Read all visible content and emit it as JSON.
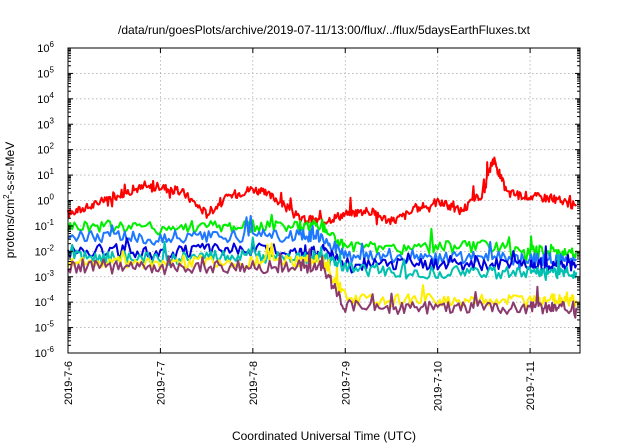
{
  "chart_data": {
    "type": "line",
    "title": "/data/run/goesPlots/archive/2019-07-11/13:00/flux/../flux/5daysEarthFluxes.txt",
    "xlabel": "Coordinated Universal Time (UTC)",
    "ylabel": {
      "base": "protons/cm",
      "sup": "2",
      "rest": "-s-sr-MeV"
    },
    "yscale": "log",
    "ylim_exp": [
      -6,
      6
    ],
    "y_ticks": [
      {
        "base": "10",
        "exp": "-6"
      },
      {
        "base": "10",
        "exp": "-5"
      },
      {
        "base": "10",
        "exp": "-4"
      },
      {
        "base": "10",
        "exp": "-3"
      },
      {
        "base": "10",
        "exp": "-2"
      },
      {
        "base": "10",
        "exp": "-1"
      },
      {
        "base": "10",
        "exp": "0"
      },
      {
        "base": "10",
        "exp": "1"
      },
      {
        "base": "10",
        "exp": "2"
      },
      {
        "base": "10",
        "exp": "3"
      },
      {
        "base": "10",
        "exp": "4"
      },
      {
        "base": "10",
        "exp": "5"
      },
      {
        "base": "10",
        "exp": "6"
      }
    ],
    "x_ticks": [
      "2019-7-6",
      "2019-7-7",
      "2019-7-8",
      "2019-7-9",
      "2019-7-10",
      "2019-7-11"
    ],
    "x_range_days": [
      "2019-07-06 00:00",
      "2019-07-11 13:00"
    ],
    "grid": true,
    "legend": "none",
    "series": [
      {
        "color": "#ff0000",
        "x": [
          0,
          0.25,
          0.5,
          0.75,
          1.0,
          1.25,
          1.5,
          1.75,
          2.0,
          2.25,
          2.5,
          2.75,
          3.0,
          3.25,
          3.5,
          3.75,
          4.0,
          4.25,
          4.5,
          4.6,
          4.75,
          5.0,
          5.25,
          5.5
        ],
        "y": [
          0.3,
          0.6,
          1.5,
          3.0,
          3.5,
          2.0,
          0.3,
          1.5,
          3.0,
          1.2,
          0.2,
          0.15,
          0.3,
          0.4,
          0.15,
          0.4,
          0.9,
          0.4,
          2.0,
          45,
          2.0,
          1.5,
          1.2,
          0.6
        ]
      },
      {
        "color": "#00ee00",
        "x": [
          0,
          0.5,
          1.0,
          1.5,
          2.0,
          2.5,
          2.75,
          3.0,
          3.5,
          4.0,
          4.5,
          5.0,
          5.25,
          5.5
        ],
        "y": [
          0.1,
          0.1,
          0.08,
          0.1,
          0.1,
          0.1,
          0.1,
          0.015,
          0.012,
          0.015,
          0.015,
          0.01,
          0.01,
          0.01
        ]
      },
      {
        "color": "#1e78ff",
        "x": [
          0,
          0.5,
          1.0,
          1.5,
          2.0,
          2.5,
          2.75,
          3.0,
          3.5,
          4.0,
          4.5,
          5.0,
          5.25,
          5.5
        ],
        "y": [
          0.04,
          0.04,
          0.03,
          0.035,
          0.04,
          0.04,
          0.04,
          0.006,
          0.005,
          0.005,
          0.006,
          0.005,
          0.005,
          0.005
        ]
      },
      {
        "color": "#0000dd",
        "x": [
          0,
          0.5,
          1.0,
          1.5,
          2.0,
          2.5,
          2.75,
          3.0,
          3.5,
          4.0,
          4.5,
          5.0,
          5.25,
          5.5
        ],
        "y": [
          0.01,
          0.012,
          0.008,
          0.012,
          0.012,
          0.01,
          0.01,
          0.003,
          0.003,
          0.003,
          0.003,
          0.003,
          0.003,
          0.003
        ]
      },
      {
        "color": "#00c0b0",
        "x": [
          0,
          0.5,
          1.0,
          1.5,
          2.0,
          2.5,
          2.75,
          3.0,
          3.5,
          4.0,
          4.5,
          5.0,
          5.25,
          5.5
        ],
        "y": [
          0.006,
          0.006,
          0.005,
          0.006,
          0.006,
          0.006,
          0.006,
          0.002,
          0.0015,
          0.0015,
          0.0015,
          0.0015,
          0.0015,
          0.0015
        ]
      },
      {
        "color": "#ffee00",
        "x": [
          0,
          0.5,
          1.0,
          1.5,
          2.0,
          2.5,
          2.75,
          3.0,
          3.5,
          4.0,
          4.5,
          5.0,
          5.25,
          5.5
        ],
        "y": [
          0.004,
          0.004,
          0.0035,
          0.004,
          0.004,
          0.004,
          0.004,
          0.00015,
          0.00012,
          0.00012,
          0.00012,
          0.00012,
          0.00012,
          0.00012
        ]
      },
      {
        "color": "#8b3a6e",
        "x": [
          0,
          0.5,
          1.0,
          1.5,
          2.0,
          2.5,
          2.75,
          3.0,
          3.5,
          4.0,
          4.5,
          5.0,
          5.25,
          5.5
        ],
        "y": [
          0.0025,
          0.0025,
          0.002,
          0.0025,
          0.0025,
          0.0025,
          0.0025,
          7e-05,
          6e-05,
          6e-05,
          6e-05,
          6e-05,
          6e-05,
          6e-05
        ]
      }
    ]
  }
}
